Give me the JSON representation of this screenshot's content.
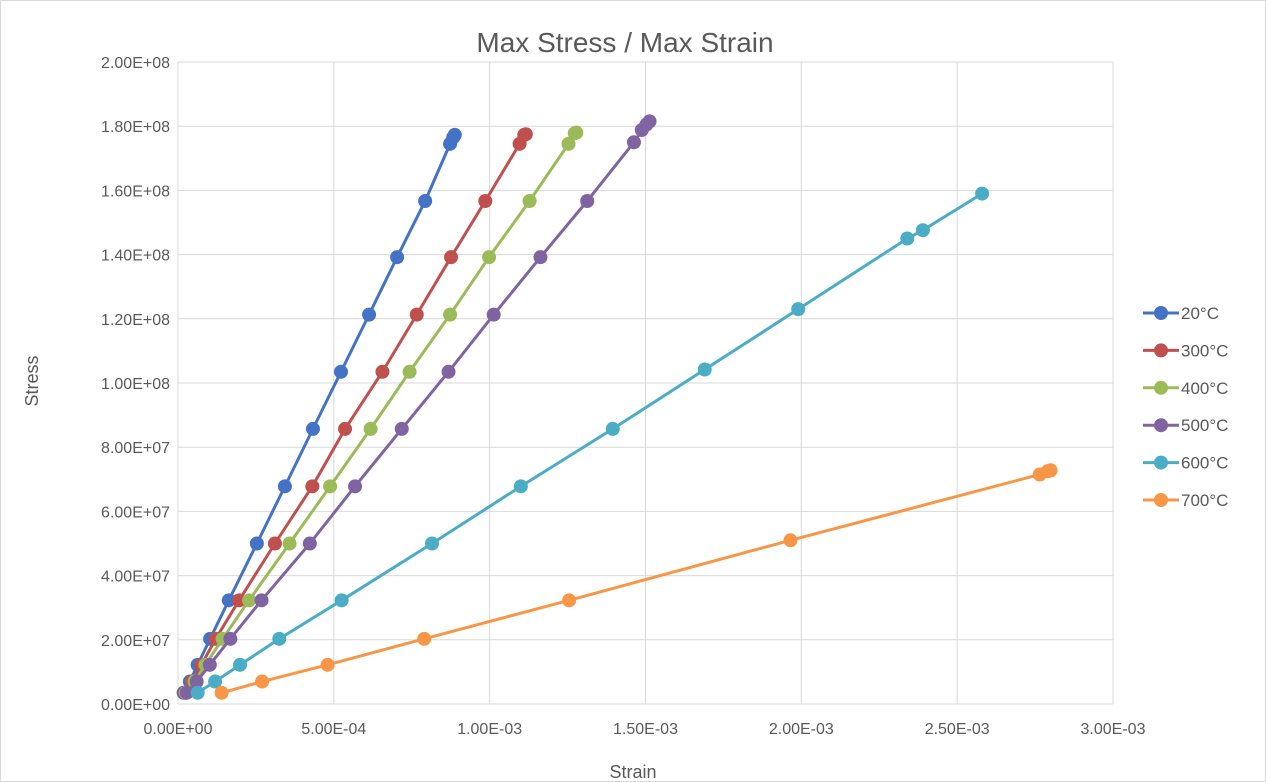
{
  "chart_data": {
    "type": "scatter",
    "mode": "lines+markers",
    "title": "Max Stress / Max Strain",
    "xlabel": "Strain",
    "ylabel": "Stress",
    "xlim": [
      0,
      0.003
    ],
    "ylim": [
      0,
      200000000
    ],
    "x_ticks": [
      0,
      0.0005,
      0.001,
      0.0015,
      0.002,
      0.0025,
      0.003
    ],
    "x_tick_labels": [
      "0.00E+00",
      "5.00E-04",
      "1.00E-03",
      "1.50E-03",
      "2.00E-03",
      "2.50E-03",
      "3.00E-03"
    ],
    "y_ticks": [
      0,
      20000000,
      40000000,
      60000000,
      80000000,
      100000000,
      120000000,
      140000000,
      160000000,
      180000000,
      200000000
    ],
    "y_tick_labels": [
      "0.00E+00",
      "2.00E+07",
      "4.00E+07",
      "6.00E+07",
      "8.00E+07",
      "1.00E+08",
      "1.20E+08",
      "1.40E+08",
      "1.60E+08",
      "1.80E+08",
      "2.00E+08"
    ],
    "grid": true,
    "legend_position": "right",
    "series": [
      {
        "name": "20°C",
        "color": "#4472C4",
        "points": [
          [
            1.8e-05,
            3500000
          ],
          [
            3.8e-05,
            7000000
          ],
          [
            6.3e-05,
            12200000
          ],
          [
            0.000103,
            20300000
          ],
          [
            0.000163,
            32300000
          ],
          [
            0.000253,
            50000000
          ],
          [
            0.000343,
            67800000
          ],
          [
            0.000433,
            85700000
          ],
          [
            0.000523,
            103500000
          ],
          [
            0.000613,
            121300000
          ],
          [
            0.000703,
            139200000
          ],
          [
            0.000793,
            156700000
          ],
          [
            0.000873,
            174500000
          ],
          [
            0.000883,
            176500000
          ],
          [
            0.000888,
            177300000
          ]
        ]
      },
      {
        "name": "300°C",
        "color": "#C0504D",
        "points": [
          [
            2.2e-05,
            3500000
          ],
          [
            4.5e-05,
            7000000
          ],
          [
            7.5e-05,
            12200000
          ],
          [
            0.000121,
            20300000
          ],
          [
            0.000196,
            32300000
          ],
          [
            0.000311,
            50000000
          ],
          [
            0.000431,
            67800000
          ],
          [
            0.000536,
            85700000
          ],
          [
            0.000656,
            103500000
          ],
          [
            0.000766,
            121300000
          ],
          [
            0.000876,
            139200000
          ],
          [
            0.000986,
            156700000
          ],
          [
            0.001096,
            174500000
          ],
          [
            0.001111,
            177300000
          ],
          [
            0.001116,
            177500000
          ]
        ]
      },
      {
        "name": "400°C",
        "color": "#9BBB59",
        "points": [
          [
            2.5e-05,
            3500000
          ],
          [
            5.3e-05,
            7000000
          ],
          [
            8.8e-05,
            12200000
          ],
          [
            0.000143,
            20300000
          ],
          [
            0.000228,
            32300000
          ],
          [
            0.000358,
            50000000
          ],
          [
            0.000488,
            67800000
          ],
          [
            0.000618,
            85700000
          ],
          [
            0.000743,
            103500000
          ],
          [
            0.000873,
            121300000
          ],
          [
            0.000998,
            139200000
          ],
          [
            0.001128,
            156700000
          ],
          [
            0.001253,
            174500000
          ],
          [
            0.001273,
            177800000
          ],
          [
            0.001278,
            178000000
          ]
        ]
      },
      {
        "name": "500°C",
        "color": "#8064A2",
        "points": [
          [
            2.8e-05,
            3500000
          ],
          [
            6e-05,
            7000000
          ],
          [
            0.000102,
            12200000
          ],
          [
            0.000168,
            20300000
          ],
          [
            0.000268,
            32300000
          ],
          [
            0.000423,
            50000000
          ],
          [
            0.000568,
            67800000
          ],
          [
            0.000718,
            85700000
          ],
          [
            0.000868,
            103500000
          ],
          [
            0.001013,
            121300000
          ],
          [
            0.001163,
            139200000
          ],
          [
            0.001313,
            156700000
          ],
          [
            0.001463,
            175000000
          ],
          [
            0.001488,
            178800000
          ],
          [
            0.001503,
            180500000
          ],
          [
            0.001513,
            181500000
          ]
        ]
      },
      {
        "name": "600°C",
        "color": "#4BACC6",
        "points": [
          [
            6.3e-05,
            3500000
          ],
          [
            0.000119,
            7000000
          ],
          [
            0.000199,
            12200000
          ],
          [
            0.000325,
            20300000
          ],
          [
            0.000525,
            32300000
          ],
          [
            0.000815,
            50000000
          ],
          [
            0.0011,
            67800000
          ],
          [
            0.001395,
            85700000
          ],
          [
            0.00169,
            104200000
          ],
          [
            0.00199,
            123000000
          ],
          [
            0.00234,
            145000000
          ],
          [
            0.00239,
            147600000
          ],
          [
            0.00258,
            159000000
          ]
        ]
      },
      {
        "name": "700°C",
        "color": "#F79646",
        "points": [
          [
            0.00014,
            3500000
          ],
          [
            0.00027,
            7000000
          ],
          [
            0.00048,
            12200000
          ],
          [
            0.00079,
            20300000
          ],
          [
            0.001255,
            32300000
          ],
          [
            0.001965,
            51000000
          ],
          [
            0.002765,
            71500000
          ],
          [
            0.00279,
            72500000
          ],
          [
            0.0028,
            72800000
          ]
        ]
      }
    ]
  }
}
